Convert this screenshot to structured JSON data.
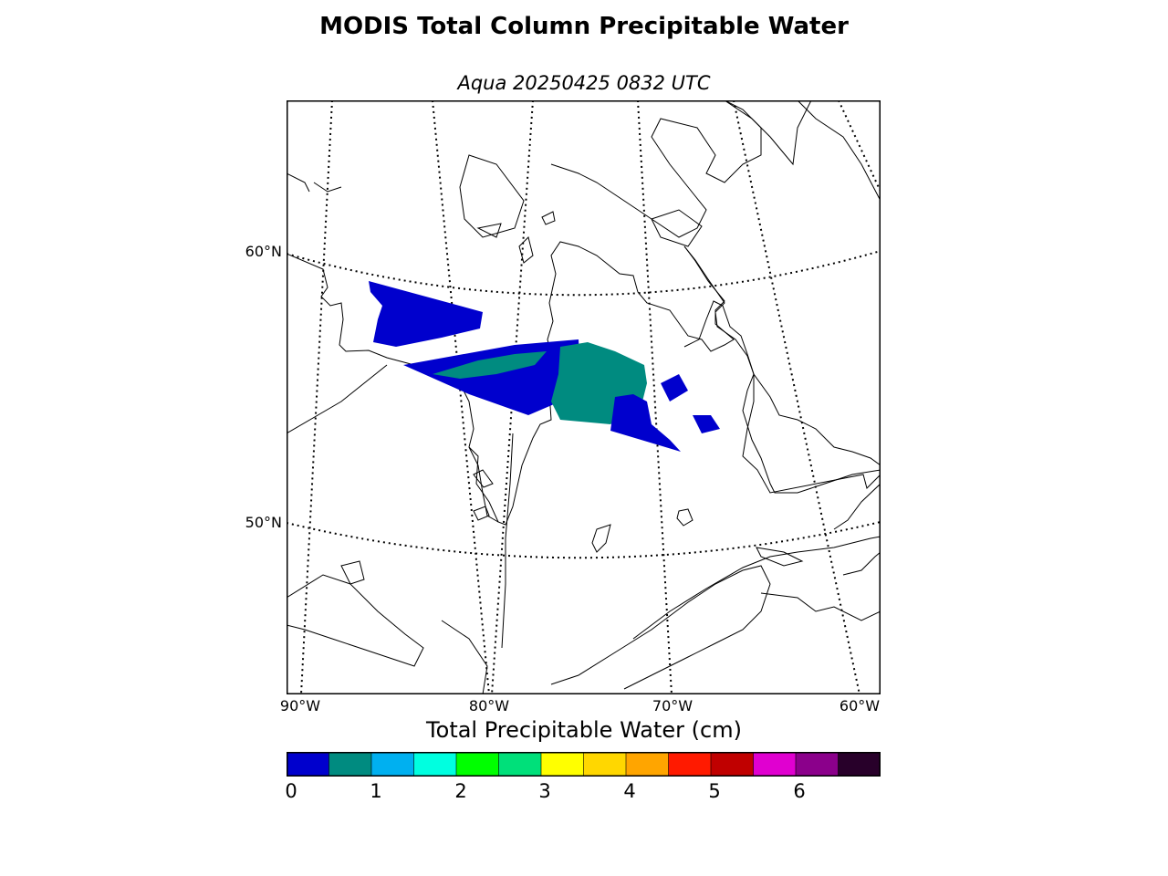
{
  "title": "MODIS Total Column Precipitable Water",
  "subtitle": "Aqua 20250425 0832 UTC",
  "lat_labels": [
    "60°N",
    "50°N"
  ],
  "lon_labels": [
    "90°W",
    "80°W",
    "70°W",
    "60°W"
  ],
  "colorbar": {
    "title": "Total Precipitable Water (cm)",
    "ticks": [
      "0",
      "1",
      "2",
      "3",
      "4",
      "5",
      "6"
    ],
    "colors": [
      "#0000cd",
      "#008b80",
      "#00b0f0",
      "#00ffe0",
      "#00ff00",
      "#00e07a",
      "#ffff00",
      "#ffd700",
      "#ffa500",
      "#ff1a00",
      "#c00000",
      "#e000d0",
      "#8b008b",
      "#28002a"
    ]
  },
  "swath_colors": {
    "low": "#0000cd",
    "mid": "#008b80"
  }
}
